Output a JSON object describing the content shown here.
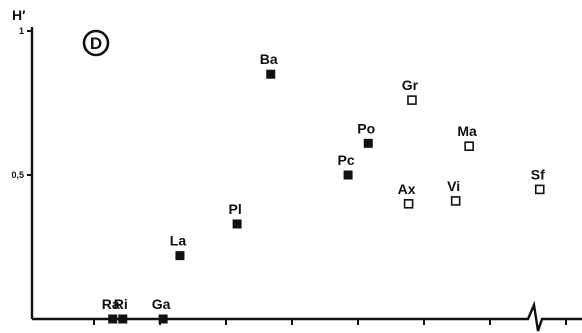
{
  "chart_data": {
    "type": "scatter",
    "panel_label": "D",
    "ylabel": "H′",
    "ylim": [
      0,
      1
    ],
    "yticks": [
      {
        "value": 1,
        "label": "1"
      },
      {
        "value": 0.5,
        "label": "0,5"
      }
    ],
    "x_minor_ticks": 8,
    "x_axis_break": true,
    "grid": false,
    "series": [
      {
        "marker": "filled-square",
        "points": [
          {
            "label": "Ra",
            "x": 1.2,
            "y": 0.0
          },
          {
            "label": "Ri",
            "x": 1.35,
            "y": 0.0
          },
          {
            "label": "Ga",
            "x": 1.95,
            "y": 0.0
          },
          {
            "label": "La",
            "x": 2.2,
            "y": 0.22
          },
          {
            "label": "Pl",
            "x": 3.05,
            "y": 0.33
          },
          {
            "label": "Ba",
            "x": 3.55,
            "y": 0.85
          },
          {
            "label": "Pc",
            "x": 4.7,
            "y": 0.5
          },
          {
            "label": "Po",
            "x": 5.0,
            "y": 0.61
          }
        ]
      },
      {
        "marker": "open-square",
        "points": [
          {
            "label": "Gr",
            "x": 5.65,
            "y": 0.76
          },
          {
            "label": "Ax",
            "x": 5.6,
            "y": 0.4
          },
          {
            "label": "Vi",
            "x": 6.3,
            "y": 0.41
          },
          {
            "label": "Ma",
            "x": 6.5,
            "y": 0.6
          },
          {
            "label": "Sf",
            "x": 7.55,
            "y": 0.45
          }
        ]
      }
    ]
  }
}
